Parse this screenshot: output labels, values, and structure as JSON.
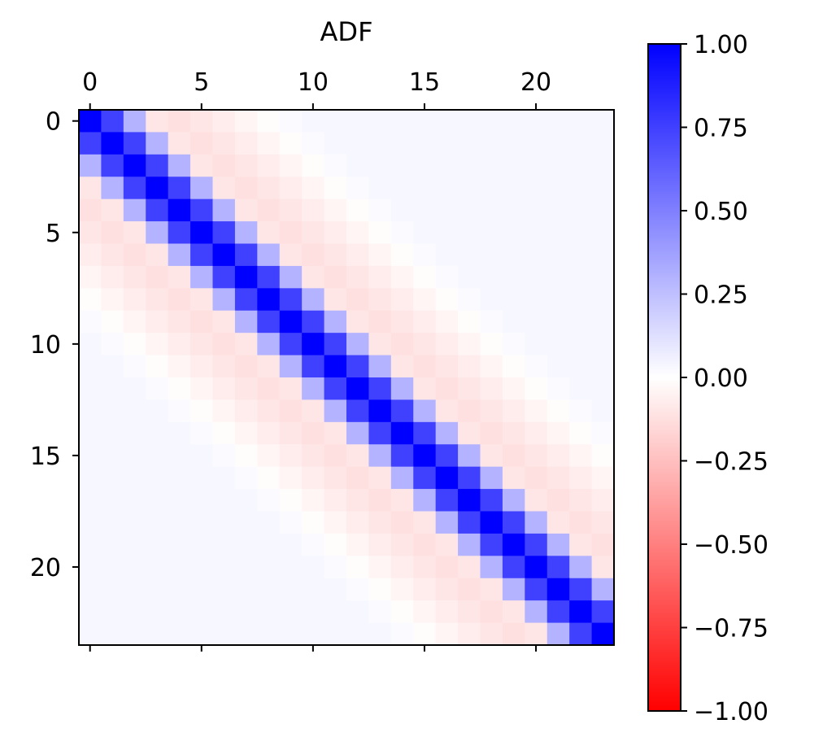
{
  "chart_data": {
    "type": "heatmap",
    "title": "ADF",
    "xlabel": "",
    "ylabel": "",
    "size": 24,
    "x_ticks": [
      0,
      5,
      10,
      15,
      20
    ],
    "y_ticks": [
      0,
      5,
      10,
      15,
      20
    ],
    "x_axis_position": "top",
    "colorbar": {
      "min": -1.0,
      "max": 1.0,
      "ticks": [
        "1.00",
        "0.75",
        "0.50",
        "0.25",
        "0.00",
        "−0.25",
        "−0.50",
        "−0.75",
        "−1.00"
      ],
      "tick_values": [
        1.0,
        0.75,
        0.5,
        0.25,
        0.0,
        -0.25,
        -0.5,
        -0.75,
        -1.0
      ],
      "colormap": "bwr_r",
      "low_color": "#ff0000",
      "mid_color": "#ffffff",
      "high_color": "#0000ff"
    },
    "background_value": 0.03,
    "band_values_by_offset": [
      1.0,
      0.75,
      0.3,
      -0.1,
      -0.12,
      -0.1,
      -0.07,
      -0.04,
      -0.01,
      0.02
    ]
  }
}
